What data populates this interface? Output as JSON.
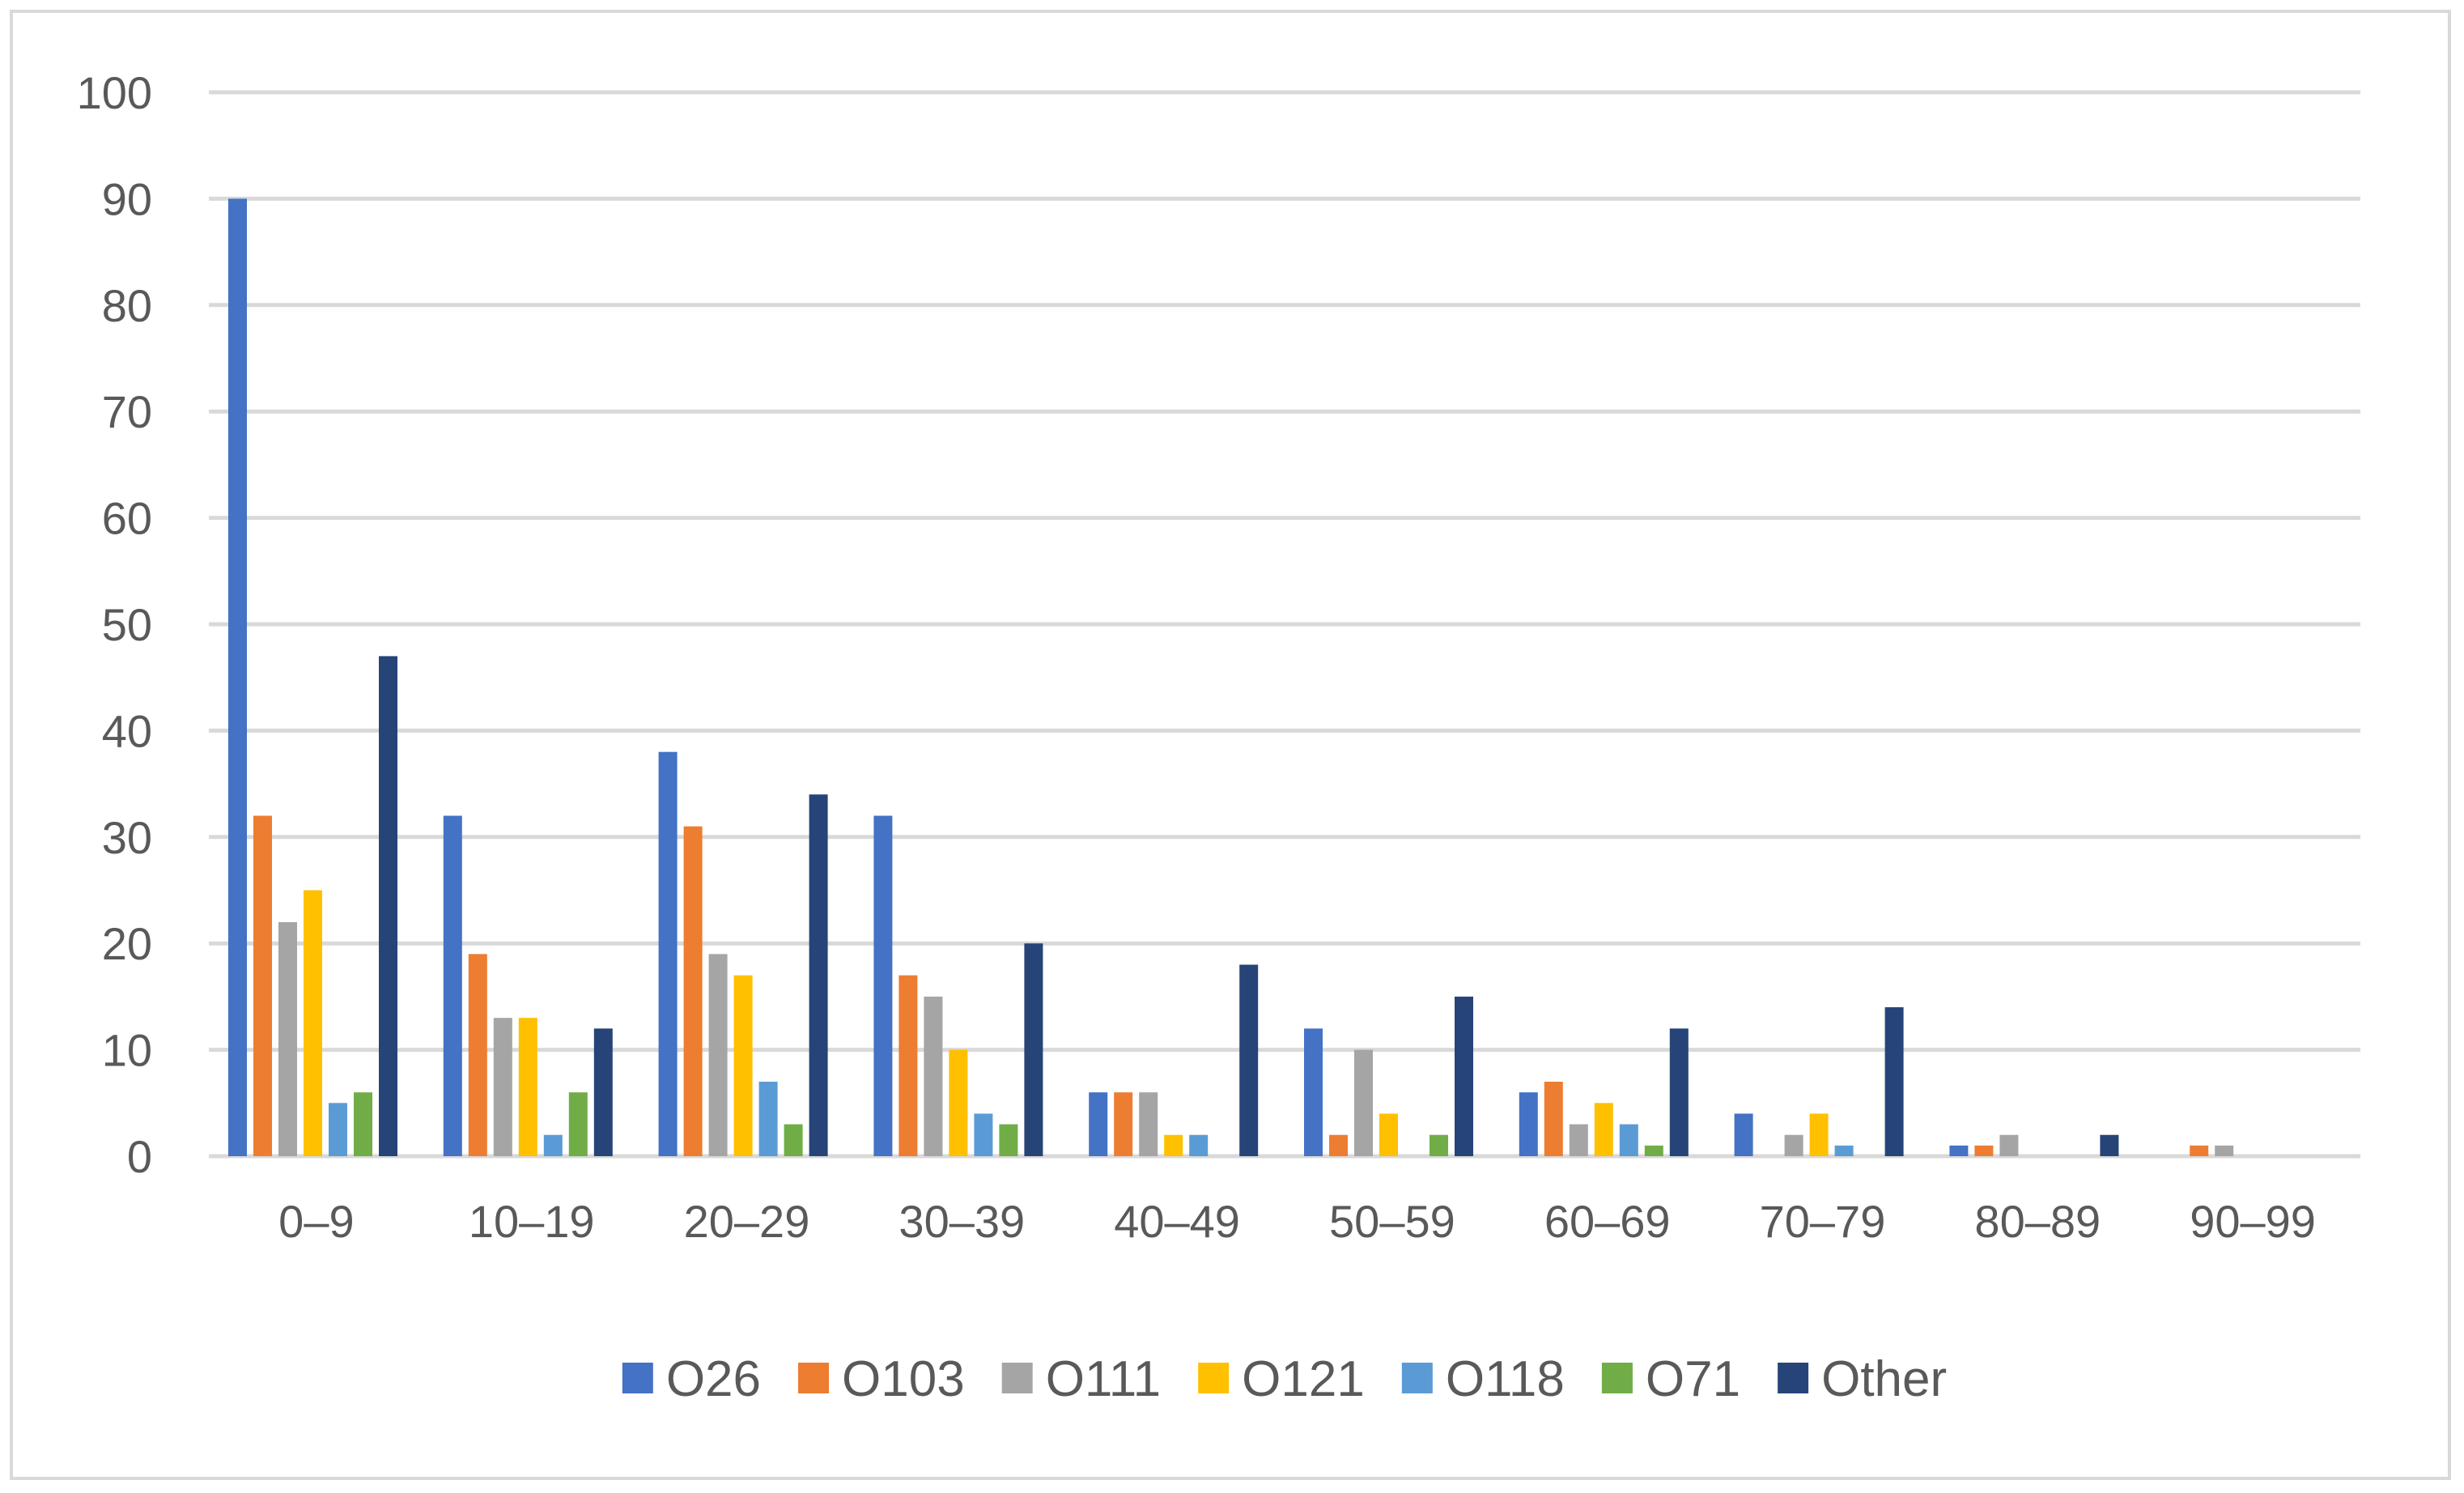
{
  "chart_data": {
    "type": "bar",
    "title": "",
    "xlabel": "",
    "ylabel": "",
    "ylim": [
      0,
      100
    ],
    "yticks": [
      0,
      10,
      20,
      30,
      40,
      50,
      60,
      70,
      80,
      90,
      100
    ],
    "grid": true,
    "legend_position": "bottom",
    "categories": [
      "0–9",
      "10–19",
      "20–29",
      "30–39",
      "40–49",
      "50–59",
      "60–69",
      "70–79",
      "80–89",
      "90–99"
    ],
    "series": [
      {
        "name": "O26",
        "color": "#4472C4",
        "values": [
          90,
          32,
          38,
          32,
          6,
          12,
          6,
          4,
          1,
          0
        ]
      },
      {
        "name": "O103",
        "color": "#ED7D31",
        "values": [
          32,
          19,
          31,
          17,
          6,
          2,
          7,
          0,
          1,
          1
        ]
      },
      {
        "name": "O111",
        "color": "#A5A5A5",
        "values": [
          22,
          13,
          19,
          15,
          6,
          10,
          3,
          2,
          2,
          1
        ]
      },
      {
        "name": "O121",
        "color": "#FFC000",
        "values": [
          25,
          13,
          17,
          10,
          2,
          4,
          5,
          4,
          0,
          0
        ]
      },
      {
        "name": "O118",
        "color": "#5B9BD5",
        "values": [
          5,
          2,
          7,
          4,
          2,
          0,
          3,
          1,
          0,
          0
        ]
      },
      {
        "name": "O71",
        "color": "#70AD47",
        "values": [
          6,
          6,
          3,
          3,
          0,
          2,
          1,
          0,
          0,
          0
        ]
      },
      {
        "name": "Other",
        "color": "#264478",
        "values": [
          47,
          12,
          34,
          20,
          18,
          15,
          12,
          14,
          2,
          0
        ]
      }
    ]
  }
}
